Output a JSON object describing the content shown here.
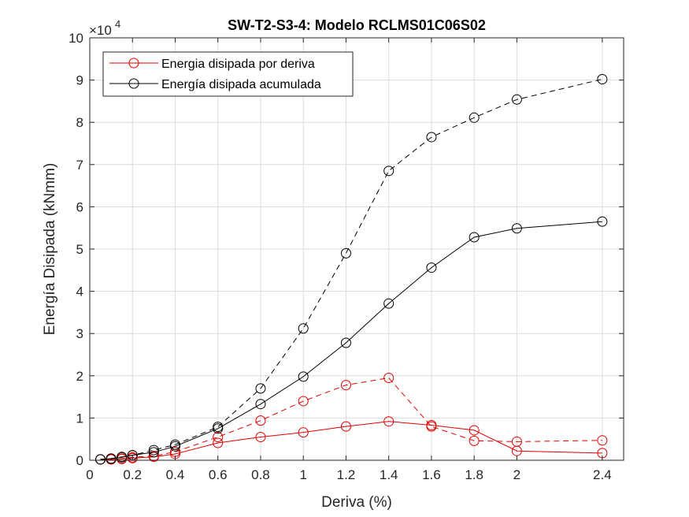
{
  "chart_data": {
    "type": "line",
    "title": "SW-T2-S3-4: Modelo RCLMS01C06S02",
    "xlabel": "Deriva (%)",
    "ylabel": "Energía Disipada (kNmm)",
    "y_exponent": "×10",
    "y_exponent_power": "4",
    "xlim": [
      0,
      2.5
    ],
    "ylim": [
      0,
      100000
    ],
    "xticks": [
      0,
      0.2,
      0.4,
      0.6,
      0.8,
      1,
      1.2,
      1.4,
      1.6,
      1.8,
      2,
      2.4
    ],
    "xtick_labels": [
      "0",
      "0.2",
      "0.4",
      "0.6",
      "0.8",
      "1",
      "1.2",
      "1.4",
      "1.6",
      "1.8",
      "2",
      "2.4"
    ],
    "yticks": [
      0,
      10000,
      20000,
      30000,
      40000,
      50000,
      60000,
      70000,
      80000,
      90000,
      100000
    ],
    "ytick_labels": [
      "0",
      "1",
      "2",
      "3",
      "4",
      "5",
      "6",
      "7",
      "8",
      "9",
      "10"
    ],
    "grid": true,
    "legend_position": "top-left",
    "series": [
      {
        "name": "Energia disipada por deriva",
        "color": "#e00000",
        "line_style": "solid",
        "marker": "circle",
        "x": [
          0.05,
          0.1,
          0.15,
          0.2,
          0.3,
          0.4,
          0.6,
          0.8,
          1.0,
          1.2,
          1.4,
          1.6,
          1.8,
          2.0,
          2.4
        ],
        "y": [
          200,
          200,
          300,
          500,
          800,
          1500,
          4100,
          5500,
          6600,
          8000,
          9200,
          8300,
          7100,
          2200,
          1700
        ]
      },
      {
        "name": "",
        "color": "#e00000",
        "line_style": "dashed",
        "marker": "circle",
        "x": [
          0.05,
          0.1,
          0.15,
          0.2,
          0.3,
          0.4,
          0.6,
          0.8,
          1.0,
          1.2,
          1.4,
          1.6,
          1.8,
          2.0,
          2.4
        ],
        "y": [
          200,
          200,
          400,
          700,
          1000,
          2000,
          5500,
          9400,
          14000,
          17800,
          19500,
          8000,
          4600,
          4400,
          4700
        ]
      },
      {
        "name": "Energía disipada acumulada",
        "color": "#000000",
        "line_style": "solid",
        "marker": "circle",
        "x": [
          0.05,
          0.1,
          0.15,
          0.2,
          0.3,
          0.4,
          0.6,
          0.8,
          1.0,
          1.2,
          1.4,
          1.6,
          1.8,
          2.0,
          2.4
        ],
        "y": [
          200,
          400,
          700,
          1200,
          1900,
          3300,
          7500,
          13300,
          19800,
          27800,
          37100,
          45600,
          52800,
          54900,
          56500
        ]
      },
      {
        "name": "",
        "color": "#000000",
        "line_style": "dashed",
        "marker": "circle",
        "x": [
          0.05,
          0.1,
          0.15,
          0.2,
          0.3,
          0.4,
          0.6,
          0.8,
          1.0,
          1.2,
          1.4,
          1.6,
          1.8,
          2.0,
          2.4
        ],
        "y": [
          200,
          400,
          800,
          1200,
          2400,
          3700,
          7900,
          17000,
          31200,
          49000,
          68500,
          76500,
          81100,
          85400,
          90200
        ]
      }
    ]
  }
}
